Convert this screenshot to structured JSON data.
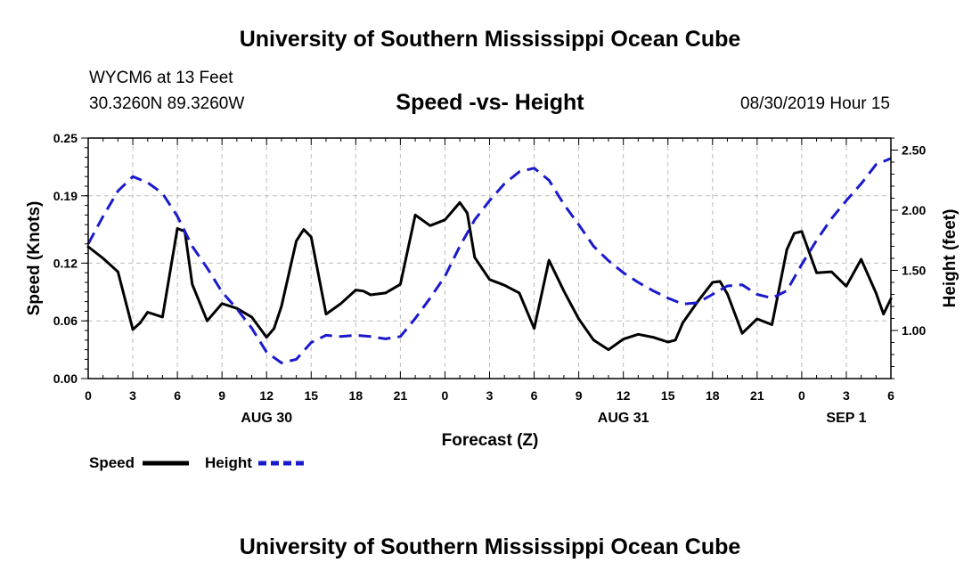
{
  "header": {
    "title": "University of Southern Mississippi Ocean Cube",
    "station": "WYCM6 at 13 Feet",
    "coords": "30.3260N 89.3260W",
    "subtitle": "Speed -vs- Height",
    "datetime": "08/30/2019 Hour 15"
  },
  "footer": {
    "title": "University of Southern Mississippi Ocean Cube"
  },
  "chart_data": {
    "type": "line",
    "title": "Speed -vs- Height",
    "xlabel": "Forecast (Z)",
    "ylabel_left": "Speed (Knots)",
    "ylabel_right": "Height (feet)",
    "x_range": [
      0,
      54
    ],
    "x_ticks": [
      {
        "x": 0,
        "label": "0"
      },
      {
        "x": 3,
        "label": "3"
      },
      {
        "x": 6,
        "label": "6"
      },
      {
        "x": 9,
        "label": "9"
      },
      {
        "x": 12,
        "label": "12"
      },
      {
        "x": 15,
        "label": "15"
      },
      {
        "x": 18,
        "label": "18"
      },
      {
        "x": 21,
        "label": "21"
      },
      {
        "x": 24,
        "label": "0"
      },
      {
        "x": 27,
        "label": "3"
      },
      {
        "x": 30,
        "label": "6"
      },
      {
        "x": 33,
        "label": "9"
      },
      {
        "x": 36,
        "label": "12"
      },
      {
        "x": 39,
        "label": "15"
      },
      {
        "x": 42,
        "label": "18"
      },
      {
        "x": 45,
        "label": "21"
      },
      {
        "x": 48,
        "label": "0"
      },
      {
        "x": 51,
        "label": "3"
      },
      {
        "x": 54,
        "label": "6"
      }
    ],
    "date_labels": [
      {
        "x": 12,
        "label": "AUG 30"
      },
      {
        "x": 36,
        "label": "AUG 31"
      },
      {
        "x": 51,
        "label": "SEP 1"
      }
    ],
    "y_left": {
      "range": [
        0,
        0.25
      ],
      "ticks": [
        0.0,
        0.06,
        0.12,
        0.19,
        0.25
      ],
      "tick_labels": [
        "0.00",
        "0.06",
        "0.12",
        "0.19",
        "0.25"
      ]
    },
    "y_right": {
      "range": [
        0.6,
        2.6
      ],
      "ticks": [
        1.0,
        1.5,
        2.0,
        2.5
      ],
      "tick_labels": [
        "1.00",
        "1.50",
        "2.00",
        "2.50"
      ]
    },
    "grid": true,
    "legend": {
      "placement": "bottom-left",
      "speed_label": "Speed",
      "height_label": "Height"
    },
    "series": [
      {
        "name": "Speed",
        "axis": "left",
        "color": "#000000",
        "dash": "solid",
        "x": [
          0,
          1,
          2,
          3,
          3.5,
          4,
          5,
          6,
          6.5,
          7,
          8,
          9,
          10,
          11,
          12,
          12.5,
          13,
          14,
          14.5,
          15,
          16,
          17,
          18,
          18.5,
          19,
          20,
          21,
          22,
          23,
          24,
          25,
          25.5,
          26,
          27,
          28,
          29,
          30,
          31,
          32,
          33,
          34,
          35,
          36,
          37,
          38,
          39,
          39.5,
          40,
          41,
          42,
          42.5,
          43,
          44,
          45,
          46,
          47,
          47.5,
          48,
          49,
          50,
          51,
          52,
          53,
          53.5,
          54
        ],
        "values": [
          0.137,
          0.125,
          0.111,
          0.051,
          0.058,
          0.069,
          0.064,
          0.156,
          0.153,
          0.098,
          0.06,
          0.078,
          0.073,
          0.064,
          0.043,
          0.052,
          0.075,
          0.143,
          0.155,
          0.147,
          0.067,
          0.078,
          0.092,
          0.091,
          0.087,
          0.089,
          0.098,
          0.17,
          0.159,
          0.165,
          0.183,
          0.172,
          0.126,
          0.103,
          0.097,
          0.089,
          0.052,
          0.123,
          0.091,
          0.062,
          0.04,
          0.03,
          0.041,
          0.046,
          0.043,
          0.038,
          0.04,
          0.058,
          0.08,
          0.1,
          0.101,
          0.088,
          0.047,
          0.062,
          0.056,
          0.134,
          0.151,
          0.153,
          0.11,
          0.111,
          0.096,
          0.124,
          0.089,
          0.067,
          0.083
        ]
      },
      {
        "name": "Height",
        "axis": "right",
        "color": "#1a1acc",
        "dash": "dashed",
        "x": [
          0,
          1,
          2,
          3,
          4,
          5,
          6,
          7,
          8,
          9,
          10,
          11,
          12,
          13,
          14,
          15,
          16,
          17,
          18,
          19,
          20,
          21,
          22,
          23,
          24,
          25,
          26,
          27,
          28,
          29,
          30,
          31,
          32,
          33,
          34,
          35,
          36,
          37,
          38,
          39,
          40,
          41,
          42,
          43,
          44,
          45,
          46,
          47,
          48,
          49,
          50,
          51,
          52,
          53,
          54
        ],
        "values": [
          1.72,
          1.95,
          2.16,
          2.28,
          2.23,
          2.14,
          1.95,
          1.7,
          1.52,
          1.32,
          1.18,
          1.02,
          0.82,
          0.73,
          0.76,
          0.9,
          0.96,
          0.95,
          0.96,
          0.95,
          0.93,
          0.95,
          1.1,
          1.27,
          1.45,
          1.7,
          1.92,
          2.08,
          2.22,
          2.32,
          2.35,
          2.25,
          2.05,
          1.88,
          1.7,
          1.58,
          1.48,
          1.4,
          1.33,
          1.27,
          1.22,
          1.23,
          1.3,
          1.37,
          1.38,
          1.3,
          1.27,
          1.33,
          1.55,
          1.75,
          1.93,
          2.08,
          2.22,
          2.38,
          2.43
        ]
      }
    ]
  }
}
